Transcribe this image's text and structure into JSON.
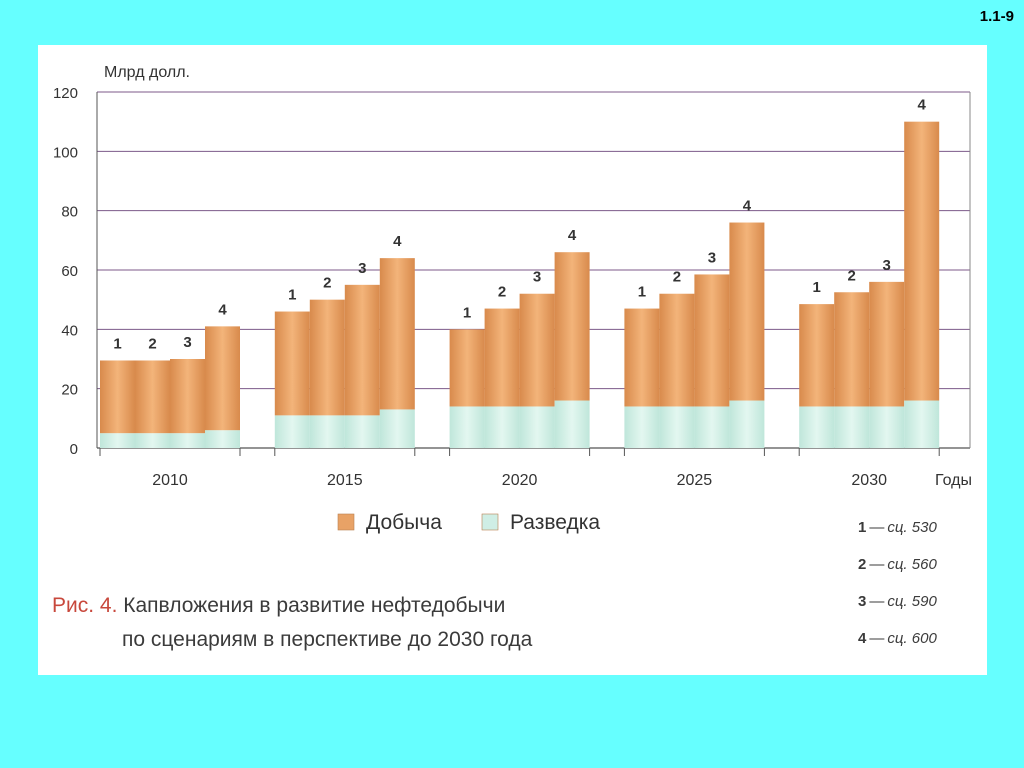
{
  "slide_number": "1.1-9",
  "chart_data": {
    "type": "bar",
    "stacked": true,
    "ylabel": "Млрд долл.",
    "xlabel": "Годы",
    "ylim": [
      0,
      120
    ],
    "yticks": [
      0,
      20,
      40,
      60,
      80,
      100,
      120
    ],
    "categories": [
      "2010",
      "2015",
      "2020",
      "2025",
      "2030"
    ],
    "scenario_labels": [
      "1",
      "2",
      "3",
      "4"
    ],
    "series": [
      {
        "name": "Разведка",
        "color": "#cfeee5",
        "values": [
          [
            5,
            5,
            5,
            6
          ],
          [
            11,
            11,
            11,
            13
          ],
          [
            14,
            14,
            14,
            16
          ],
          [
            14,
            14,
            14,
            16
          ],
          [
            14,
            14,
            14,
            16
          ]
        ]
      },
      {
        "name": "Добыча",
        "color": "#e8a266",
        "values": [
          [
            24.5,
            24.5,
            25,
            35
          ],
          [
            35,
            39,
            44,
            51
          ],
          [
            26,
            33,
            38,
            50
          ],
          [
            33,
            38,
            44.5,
            60
          ],
          [
            34.5,
            38.5,
            42,
            94
          ]
        ]
      }
    ],
    "legend": [
      "Добыча",
      "Разведка"
    ],
    "scenario_legend": [
      {
        "num": "1",
        "text": "сц. 530"
      },
      {
        "num": "2",
        "text": "сц. 560"
      },
      {
        "num": "3",
        "text": "сц. 590"
      },
      {
        "num": "4",
        "text": "сц. 600"
      }
    ],
    "grid": true
  },
  "caption": {
    "fig_label": "Рис. 4.",
    "line1": "Капвложения в развитие нефтедобычи",
    "line2": "по сценариям в перспективе до 2030 года"
  }
}
